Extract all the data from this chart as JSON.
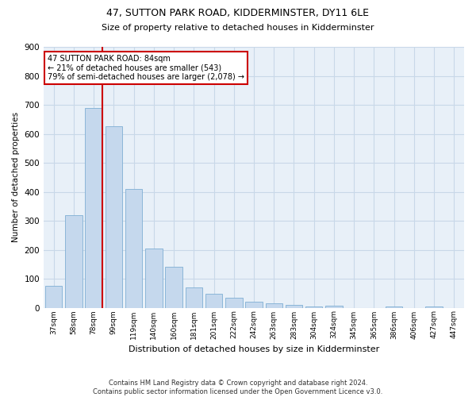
{
  "title": "47, SUTTON PARK ROAD, KIDDERMINSTER, DY11 6LE",
  "subtitle": "Size of property relative to detached houses in Kidderminster",
  "xlabel": "Distribution of detached houses by size in Kidderminster",
  "ylabel": "Number of detached properties",
  "categories": [
    "37sqm",
    "58sqm",
    "78sqm",
    "99sqm",
    "119sqm",
    "140sqm",
    "160sqm",
    "181sqm",
    "201sqm",
    "222sqm",
    "242sqm",
    "263sqm",
    "283sqm",
    "304sqm",
    "324sqm",
    "345sqm",
    "365sqm",
    "386sqm",
    "406sqm",
    "427sqm",
    "447sqm"
  ],
  "values": [
    75,
    320,
    690,
    625,
    410,
    205,
    140,
    70,
    47,
    35,
    20,
    15,
    10,
    5,
    8,
    0,
    0,
    5,
    0,
    5,
    0
  ],
  "bar_color": "#c5d8ed",
  "bar_edge_color": "#7fafd4",
  "annotation_line1": "47 SUTTON PARK ROAD: 84sqm",
  "annotation_line2": "← 21% of detached houses are smaller (543)",
  "annotation_line3": "79% of semi-detached houses are larger (2,078) →",
  "annotation_box_color": "#ffffff",
  "annotation_box_edge_color": "#cc0000",
  "vline_color": "#cc0000",
  "vline_x_index": 2,
  "ylim": [
    0,
    900
  ],
  "yticks": [
    0,
    100,
    200,
    300,
    400,
    500,
    600,
    700,
    800,
    900
  ],
  "grid_color": "#c8d8e8",
  "bg_color": "#e8f0f8",
  "footer1": "Contains HM Land Registry data © Crown copyright and database right 2024.",
  "footer2": "Contains public sector information licensed under the Open Government Licence v3.0."
}
